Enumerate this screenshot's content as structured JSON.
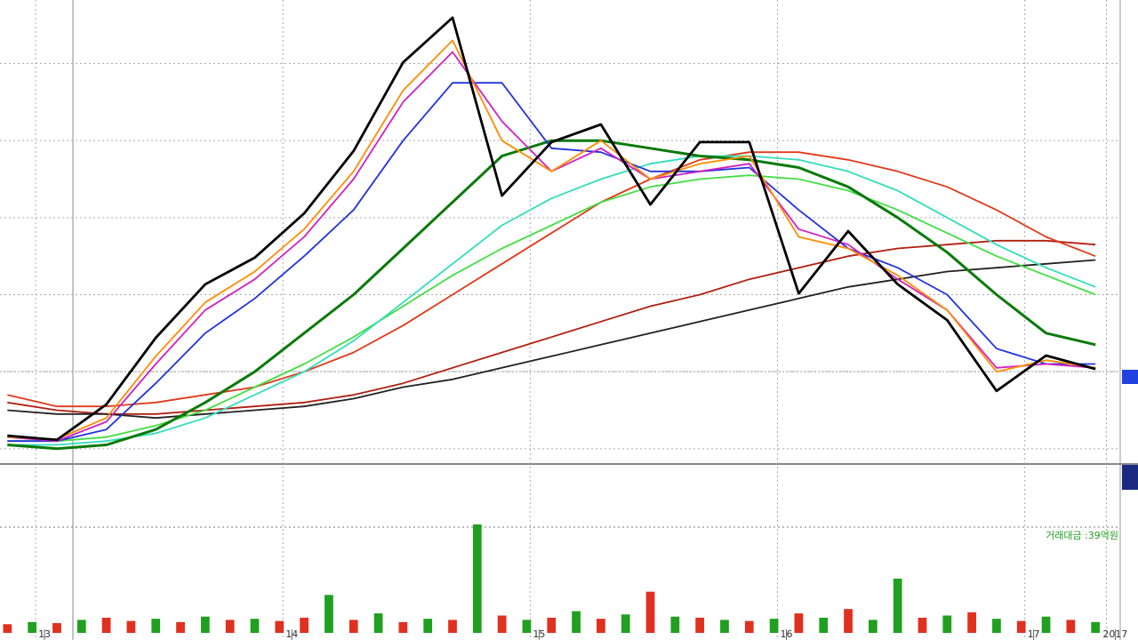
{
  "chart_data": [
    {
      "type": "line",
      "x": [
        12.85,
        13.05,
        13.25,
        13.45,
        13.65,
        13.85,
        14.05,
        14.25,
        14.45,
        14.65,
        14.85,
        15.05,
        15.25,
        15.45,
        15.65,
        15.85,
        16.05,
        16.25,
        16.45,
        16.65,
        16.85,
        17.05,
        17.25
      ],
      "series": [
        {
          "color": "#b02010",
          "values": [
            12,
            10,
            9,
            9,
            10,
            11,
            12,
            14,
            17,
            21,
            25,
            29,
            33,
            37,
            40,
            44,
            47,
            50,
            52,
            53,
            54,
            54,
            53
          ]
        },
        {
          "color": "#222222",
          "values": [
            10,
            9,
            9,
            8,
            9,
            10,
            11,
            13,
            16,
            18,
            21,
            24,
            27,
            30,
            33,
            36,
            39,
            42,
            44,
            46,
            47,
            48,
            49
          ]
        },
        {
          "color": "#e03a1a",
          "values": [
            14,
            11,
            11,
            12,
            14,
            16,
            20,
            25,
            32,
            40,
            48,
            56,
            64,
            70,
            75,
            77,
            77,
            75,
            72,
            68,
            62,
            55,
            50
          ]
        },
        {
          "color": "#44dd44",
          "values": [
            2,
            2,
            3,
            6,
            10,
            16,
            22,
            29,
            37,
            45,
            52,
            58,
            64,
            68,
            70,
            71,
            70,
            67,
            62,
            56,
            50,
            45,
            40
          ]
        },
        {
          "color": "#33ddbb",
          "values": [
            1,
            1,
            2,
            4,
            8,
            14,
            20,
            28,
            38,
            48,
            58,
            65,
            70,
            74,
            76,
            76,
            75,
            72,
            67,
            60,
            53,
            47,
            42
          ]
        },
        {
          "color": "#0a7a0a",
          "values": [
            1,
            0,
            1,
            5,
            12,
            20,
            30,
            40,
            52,
            64,
            76,
            80,
            80,
            78,
            76,
            75,
            73,
            68,
            60,
            51,
            40,
            30,
            27
          ]
        },
        {
          "color": "#2233dd",
          "values": [
            2,
            2,
            5,
            17,
            30,
            39,
            50,
            62,
            80,
            95,
            95,
            78,
            77,
            72,
            72,
            73,
            62,
            52,
            47,
            40,
            26,
            22,
            22
          ]
        },
        {
          "color": "#d020c0",
          "values": [
            3,
            2,
            7,
            22,
            36,
            44,
            55,
            70,
            90,
            103,
            85,
            72,
            78,
            70,
            72,
            74,
            57,
            53,
            44,
            36,
            21,
            22,
            21
          ]
        },
        {
          "color": "#ff8c00",
          "values": [
            3,
            2.5,
            8,
            24,
            38,
            46,
            57,
            72,
            93,
            106,
            80,
            72,
            80,
            70,
            74,
            76,
            55,
            52,
            45,
            36,
            20,
            23,
            21
          ]
        },
        {
          "color": "#000000",
          "values": [
            3.4,
            2.3,
            11.5,
            28.8,
            42.7,
            49.6,
            61.1,
            77.3,
            100.3,
            111.9,
            65.7,
            79.6,
            84.2,
            63.4,
            79.6,
            79.6,
            40.3,
            56.5,
            42.7,
            33.4,
            15.0,
            24.2,
            20.7
          ]
        }
      ],
      "xlim": [
        12.82,
        17.35
      ],
      "xticks": [
        13,
        14,
        15,
        16,
        17,
        {
          "value": 17.33,
          "label": "2017"
        }
      ],
      "ylim": [
        -3.5,
        116.5
      ],
      "yticks": [
        0,
        20,
        40,
        60,
        80,
        100
      ],
      "grid": true
    },
    {
      "type": "bar",
      "annotation": "거래대금 :39억원",
      "x": [
        12.85,
        12.95,
        13.05,
        13.15,
        13.25,
        13.35,
        13.45,
        13.55,
        13.65,
        13.75,
        13.85,
        13.95,
        14.05,
        14.15,
        14.25,
        14.35,
        14.45,
        14.55,
        14.65,
        14.75,
        14.85,
        14.95,
        15.05,
        15.15,
        15.25,
        15.35,
        15.45,
        15.55,
        15.65,
        15.75,
        15.85,
        15.95,
        16.05,
        16.15,
        16.25,
        16.35,
        16.45,
        16.55,
        16.65,
        16.75,
        16.85,
        16.95,
        17.05,
        17.15,
        17.25
      ],
      "values": [
        8,
        10,
        9,
        12,
        14,
        11,
        13,
        10,
        15,
        12,
        13,
        11,
        14,
        35,
        12,
        18,
        10,
        13,
        12,
        100,
        16,
        12,
        14,
        20,
        13,
        17,
        38,
        15,
        14,
        12,
        11,
        13,
        18,
        14,
        22,
        12,
        50,
        14,
        16,
        19,
        13,
        11,
        15,
        12,
        10
      ],
      "colors": [
        "#e03020",
        "#20a020",
        "#e03020",
        "#20a020",
        "#e03020",
        "#e03020",
        "#20a020",
        "#e03020",
        "#20a020",
        "#e03020",
        "#20a020",
        "#e03020",
        "#e03020",
        "#20a020",
        "#e03020",
        "#20a020",
        "#e03020",
        "#20a020",
        "#e03020",
        "#20a020",
        "#e03020",
        "#20a020",
        "#e03020",
        "#20a020",
        "#e03020",
        "#20a020",
        "#e03020",
        "#20a020",
        "#e03020",
        "#20a020",
        "#e03020",
        "#20a020",
        "#e03020",
        "#20a020",
        "#e03020",
        "#20a020",
        "#20a020",
        "#e03020",
        "#20a020",
        "#e03020",
        "#20a020",
        "#e03020",
        "#20a020",
        "#e03020",
        "#20a020"
      ],
      "xlim": [
        12.82,
        17.35
      ],
      "ylim": [
        0,
        100
      ]
    }
  ]
}
